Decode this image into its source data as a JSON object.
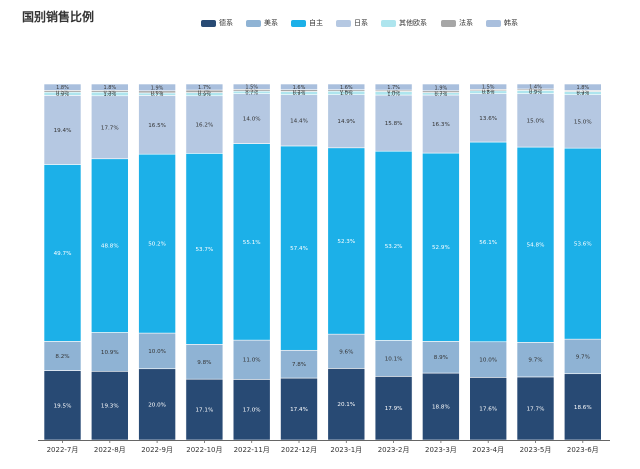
{
  "chart_data": {
    "type": "bar",
    "stacked": true,
    "percent": true,
    "title": "国别销售比例",
    "legend_position": "top-center",
    "grid": false,
    "categories": [
      "2022-7月",
      "2022-8月",
      "2022-9月",
      "2022-10月",
      "2022-11月",
      "2022-12月",
      "2023-1月",
      "2023-2月",
      "2023-3月",
      "2023-4月",
      "2023-5月",
      "2023-6月"
    ],
    "series": [
      {
        "name": "德系",
        "color": "#284a74",
        "values": [
          19.5,
          19.3,
          20.0,
          17.1,
          17.0,
          17.4,
          20.1,
          17.9,
          18.8,
          17.6,
          17.7,
          18.6
        ],
        "labels": [
          "19.5%",
          "19.3%",
          "20.0%",
          "17.1%",
          "17.0%",
          "17.4%",
          "20.1%",
          "17.9%",
          "18.8%",
          "17.6%",
          "17.7%",
          "18.6%"
        ]
      },
      {
        "name": "美系",
        "color": "#8fb3d4",
        "values": [
          8.2,
          10.9,
          10.0,
          9.8,
          11.0,
          7.8,
          9.6,
          10.1,
          8.9,
          10.0,
          9.7,
          9.7
        ],
        "labels": [
          "8.2%",
          "10.9%",
          "10.0%",
          "9.8%",
          "11.0%",
          "7.8%",
          "9.6%",
          "10.1%",
          "8.9%",
          "10.0%",
          "9.7%",
          "9.7%"
        ]
      },
      {
        "name": "自主",
        "color": "#1cb0e8",
        "values": [
          49.7,
          48.8,
          50.2,
          53.7,
          55.1,
          57.4,
          52.3,
          53.2,
          52.9,
          56.1,
          54.8,
          53.6
        ],
        "labels": [
          "49.7%",
          "48.8%",
          "50.2%",
          "53.7%",
          "55.1%",
          "57.4%",
          "52.3%",
          "53.2%",
          "52.9%",
          "56.1%",
          "54.8%",
          "53.6%"
        ]
      },
      {
        "name": "日系",
        "color": "#b5c8e2",
        "values": [
          19.4,
          17.7,
          16.5,
          16.2,
          14.0,
          14.4,
          14.9,
          15.8,
          16.3,
          13.6,
          15.0,
          15.0
        ],
        "labels": [
          "19.4%",
          "17.7%",
          "16.5%",
          "16.2%",
          "14.0%",
          "14.4%",
          "14.9%",
          "15.8%",
          "16.3%",
          "13.6%",
          "15.0%",
          "15.0%"
        ]
      },
      {
        "name": "其他欧系",
        "color": "#aee5ee",
        "values": [
          0.9,
          1.0,
          0.7,
          0.9,
          0.7,
          0.9,
          1.0,
          1.0,
          0.7,
          0.8,
          0.9,
          0.9
        ],
        "labels": [
          "0.9%",
          "1.0%",
          "0.7%",
          "0.9%",
          "0.7%",
          "0.9%",
          "1.0%",
          "1.0%",
          "0.7%",
          "0.8%",
          "0.9%",
          "0.9%"
        ]
      },
      {
        "name": "法系",
        "color": "#a6a6a6",
        "values": [
          0.5,
          0.5,
          0.6,
          0.7,
          0.5,
          0.5,
          0.4,
          0.4,
          0.5,
          0.4,
          0.4,
          0.3
        ],
        "labels": [
          "0.5%",
          "0.5%",
          "0.6%",
          "0.7%",
          "0.5%",
          "0.5%",
          "0.4%",
          "0.4%",
          "0.5%",
          "0.4%",
          "0.4%",
          "0.3%"
        ]
      },
      {
        "name": "韩系",
        "color": "#a9bfdd",
        "values": [
          1.8,
          1.8,
          1.9,
          1.7,
          1.5,
          1.6,
          1.6,
          1.7,
          1.9,
          1.5,
          1.4,
          1.8
        ],
        "labels": [
          "1.8%",
          "1.8%",
          "1.9%",
          "1.7%",
          "1.5%",
          "1.6%",
          "1.6%",
          "1.7%",
          "1.9%",
          "1.5%",
          "1.4%",
          "1.8%"
        ]
      }
    ]
  }
}
